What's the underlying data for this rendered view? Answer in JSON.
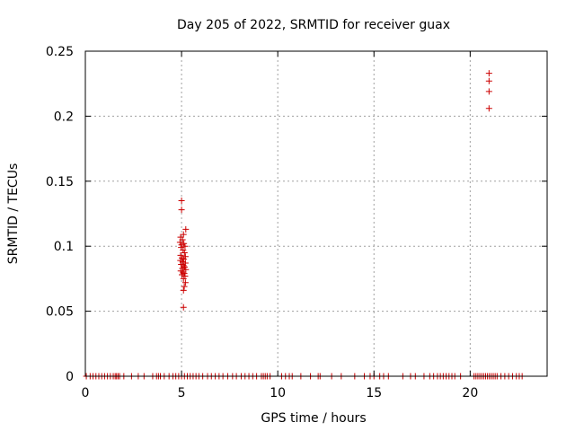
{
  "chart_data": {
    "type": "scatter",
    "title": "Day 205 of 2022, SRMTID for receiver guax",
    "xlabel": "GPS time / hours",
    "ylabel": "SRMTID / TECUs",
    "xlim": [
      0,
      24
    ],
    "ylim": [
      0,
      0.25
    ],
    "grid": true,
    "marker": "+",
    "marker_color": "#cc0000",
    "grid_color": "#a0a0a0",
    "x_ticks": [
      {
        "value": 0,
        "label": "0"
      },
      {
        "value": 5,
        "label": "5"
      },
      {
        "value": 10,
        "label": "10"
      },
      {
        "value": 15,
        "label": "15"
      },
      {
        "value": 20,
        "label": "20"
      }
    ],
    "y_ticks": [
      {
        "value": 0,
        "label": "0"
      },
      {
        "value": 0.05,
        "label": "0.05"
      },
      {
        "value": 0.1,
        "label": "0.1"
      },
      {
        "value": 0.15,
        "label": "0.15"
      },
      {
        "value": 0.2,
        "label": "0.2"
      },
      {
        "value": 0.25,
        "label": "0.25"
      }
    ],
    "series": [
      {
        "name": "SRMTID",
        "points": [
          [
            20.98,
            0.233
          ],
          [
            20.98,
            0.227
          ],
          [
            20.98,
            0.219
          ],
          [
            20.98,
            0.206
          ],
          [
            5.0,
            0.135
          ],
          [
            5.0,
            0.128
          ],
          [
            5.22,
            0.113
          ],
          [
            5.1,
            0.109
          ],
          [
            4.95,
            0.107
          ],
          [
            5.05,
            0.105
          ],
          [
            4.92,
            0.103
          ],
          [
            5.12,
            0.102
          ],
          [
            5.0,
            0.101
          ],
          [
            5.18,
            0.1
          ],
          [
            4.98,
            0.099
          ],
          [
            5.08,
            0.097
          ],
          [
            5.15,
            0.095
          ],
          [
            4.95,
            0.093
          ],
          [
            5.2,
            0.092
          ],
          [
            5.02,
            0.091
          ],
          [
            5.12,
            0.09
          ],
          [
            4.94,
            0.089
          ],
          [
            5.06,
            0.088
          ],
          [
            5.2,
            0.087
          ],
          [
            4.98,
            0.086
          ],
          [
            5.1,
            0.085
          ],
          [
            5.16,
            0.084
          ],
          [
            5.04,
            0.083
          ],
          [
            5.22,
            0.082
          ],
          [
            4.96,
            0.081
          ],
          [
            5.08,
            0.08
          ],
          [
            5.14,
            0.079
          ],
          [
            5.02,
            0.078
          ],
          [
            5.18,
            0.077
          ],
          [
            5.1,
            0.075
          ],
          [
            5.2,
            0.072
          ],
          [
            5.14,
            0.069
          ],
          [
            5.1,
            0.066
          ],
          [
            5.1,
            0.053
          ],
          [
            0.05,
            0
          ],
          [
            0.25,
            0
          ],
          [
            0.4,
            0
          ],
          [
            0.55,
            0
          ],
          [
            0.7,
            0
          ],
          [
            0.85,
            0
          ],
          [
            1.0,
            0
          ],
          [
            1.15,
            0
          ],
          [
            1.3,
            0
          ],
          [
            1.45,
            0
          ],
          [
            1.55,
            0
          ],
          [
            1.62,
            0
          ],
          [
            1.7,
            0
          ],
          [
            1.78,
            0
          ],
          [
            2.0,
            0
          ],
          [
            2.4,
            0
          ],
          [
            2.75,
            0
          ],
          [
            3.05,
            0
          ],
          [
            3.5,
            0
          ],
          [
            3.7,
            0
          ],
          [
            3.8,
            0
          ],
          [
            3.9,
            0
          ],
          [
            4.1,
            0
          ],
          [
            4.35,
            0
          ],
          [
            4.55,
            0
          ],
          [
            4.7,
            0
          ],
          [
            4.85,
            0
          ],
          [
            5.0,
            0
          ],
          [
            5.15,
            0
          ],
          [
            5.3,
            0
          ],
          [
            5.45,
            0
          ],
          [
            5.6,
            0
          ],
          [
            5.75,
            0
          ],
          [
            5.9,
            0
          ],
          [
            6.1,
            0
          ],
          [
            6.35,
            0
          ],
          [
            6.55,
            0
          ],
          [
            6.75,
            0
          ],
          [
            6.95,
            0
          ],
          [
            7.15,
            0
          ],
          [
            7.4,
            0
          ],
          [
            7.65,
            0
          ],
          [
            7.85,
            0
          ],
          [
            8.1,
            0
          ],
          [
            8.3,
            0
          ],
          [
            8.5,
            0
          ],
          [
            8.7,
            0
          ],
          [
            8.9,
            0
          ],
          [
            9.15,
            0
          ],
          [
            9.25,
            0
          ],
          [
            9.35,
            0
          ],
          [
            9.45,
            0
          ],
          [
            9.6,
            0
          ],
          [
            10.2,
            0
          ],
          [
            10.4,
            0
          ],
          [
            10.6,
            0
          ],
          [
            10.75,
            0
          ],
          [
            11.2,
            0
          ],
          [
            11.7,
            0
          ],
          [
            12.1,
            0
          ],
          [
            12.2,
            0
          ],
          [
            12.8,
            0
          ],
          [
            13.3,
            0
          ],
          [
            14.0,
            0
          ],
          [
            14.5,
            0
          ],
          [
            14.8,
            0
          ],
          [
            15.0,
            0
          ],
          [
            15.3,
            0
          ],
          [
            15.5,
            0
          ],
          [
            15.75,
            0
          ],
          [
            16.5,
            0
          ],
          [
            16.9,
            0
          ],
          [
            17.15,
            0
          ],
          [
            17.6,
            0
          ],
          [
            17.9,
            0
          ],
          [
            18.1,
            0
          ],
          [
            18.3,
            0
          ],
          [
            18.45,
            0
          ],
          [
            18.6,
            0
          ],
          [
            18.75,
            0
          ],
          [
            18.9,
            0
          ],
          [
            19.05,
            0
          ],
          [
            19.2,
            0
          ],
          [
            19.5,
            0
          ],
          [
            20.2,
            0
          ],
          [
            20.3,
            0
          ],
          [
            20.4,
            0
          ],
          [
            20.5,
            0
          ],
          [
            20.6,
            0
          ],
          [
            20.7,
            0
          ],
          [
            20.8,
            0
          ],
          [
            20.9,
            0
          ],
          [
            21.0,
            0
          ],
          [
            21.1,
            0
          ],
          [
            21.2,
            0
          ],
          [
            21.3,
            0
          ],
          [
            21.4,
            0
          ],
          [
            21.6,
            0
          ],
          [
            21.8,
            0
          ],
          [
            22.0,
            0
          ],
          [
            22.2,
            0
          ],
          [
            22.4,
            0
          ],
          [
            22.55,
            0
          ],
          [
            22.7,
            0
          ]
        ]
      }
    ]
  }
}
